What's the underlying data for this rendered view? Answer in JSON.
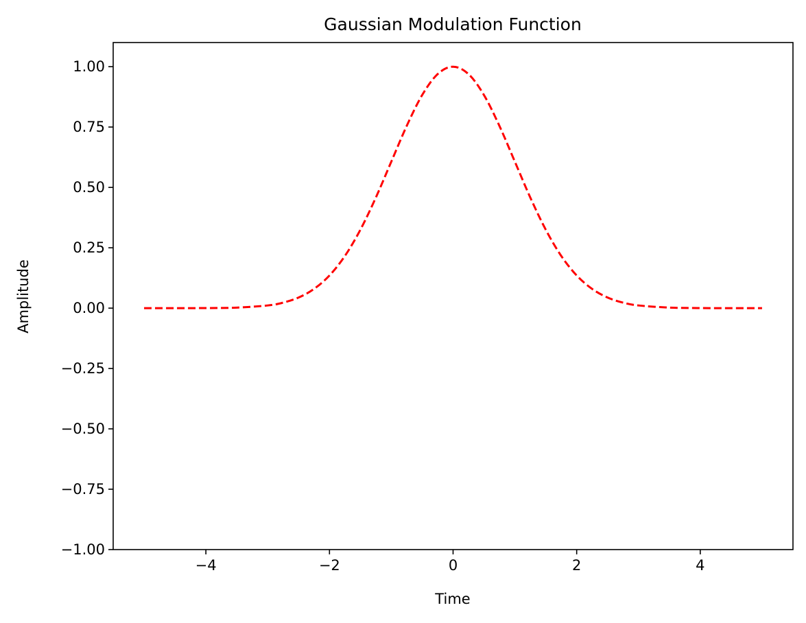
{
  "chart_data": {
    "type": "line",
    "title": "Gaussian Modulation Function",
    "xlabel": "Time",
    "ylabel": "Amplitude",
    "xlim": [
      -5.5,
      5.5
    ],
    "ylim": [
      -1.0,
      1.1
    ],
    "xticks": [
      -4,
      -2,
      0,
      2,
      4
    ],
    "xtick_labels": [
      "−4",
      "−2",
      "0",
      "2",
      "4"
    ],
    "yticks": [
      -1.0,
      -0.75,
      -0.5,
      -0.25,
      0.0,
      0.25,
      0.5,
      0.75,
      1.0
    ],
    "ytick_labels": [
      "−1.00",
      "−0.75",
      "−0.50",
      "−0.25",
      "0.00",
      "0.25",
      "0.50",
      "0.75",
      "1.00"
    ],
    "grid": false,
    "legend": "none",
    "series": [
      {
        "color": "#ff0000",
        "line_style": "dashed",
        "x": [
          -5.0,
          -4.5,
          -4.0,
          -3.5,
          -3.0,
          -2.75,
          -2.5,
          -2.25,
          -2.0,
          -1.75,
          -1.5,
          -1.25,
          -1.0,
          -0.75,
          -0.5,
          -0.25,
          0.0,
          0.25,
          0.5,
          0.75,
          1.0,
          1.25,
          1.5,
          1.75,
          2.0,
          2.25,
          2.5,
          2.75,
          3.0,
          3.5,
          4.0,
          4.5,
          5.0
        ],
        "y": [
          0.0,
          0.0,
          0.0003,
          0.0022,
          0.0111,
          0.0228,
          0.0439,
          0.0796,
          0.1353,
          0.2163,
          0.3247,
          0.4578,
          0.6065,
          0.7548,
          0.8825,
          0.9692,
          1.0,
          0.9692,
          0.8825,
          0.7548,
          0.6065,
          0.4578,
          0.3247,
          0.2163,
          0.1353,
          0.0796,
          0.0439,
          0.0228,
          0.0111,
          0.0022,
          0.0003,
          0.0,
          0.0
        ]
      }
    ]
  }
}
